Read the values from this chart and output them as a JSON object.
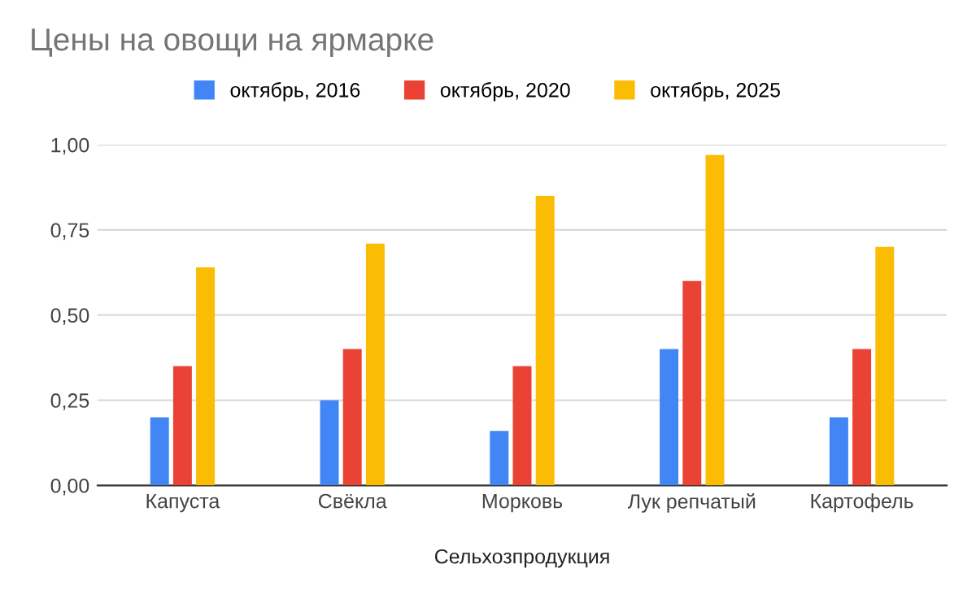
{
  "chart_data": {
    "type": "bar",
    "title": "Цены на овощи на ярмарке",
    "xlabel": "Сельхозпродукция",
    "categories": [
      "Капуста",
      "Свёкла",
      "Морковь",
      "Лук репчатый",
      "Картофель"
    ],
    "series": [
      {
        "name": "октябрь, 2016",
        "color": "#4285f4",
        "values": [
          0.2,
          0.25,
          0.16,
          0.4,
          0.2
        ]
      },
      {
        "name": "октябрь, 2020",
        "color": "#ea4335",
        "values": [
          0.35,
          0.4,
          0.35,
          0.6,
          0.4
        ]
      },
      {
        "name": "октябрь, 2025",
        "color": "#fbbc04",
        "values": [
          0.64,
          0.71,
          0.85,
          0.97,
          0.7
        ]
      }
    ],
    "ylim": [
      0,
      1
    ],
    "yticks": [
      {
        "value": 0,
        "label": "0,00"
      },
      {
        "value": 0.25,
        "label": "0,25"
      },
      {
        "value": 0.5,
        "label": "0,50"
      },
      {
        "value": 0.75,
        "label": "0,75"
      },
      {
        "value": 1,
        "label": "1,00"
      }
    ],
    "grid": "y",
    "legend": "top"
  }
}
